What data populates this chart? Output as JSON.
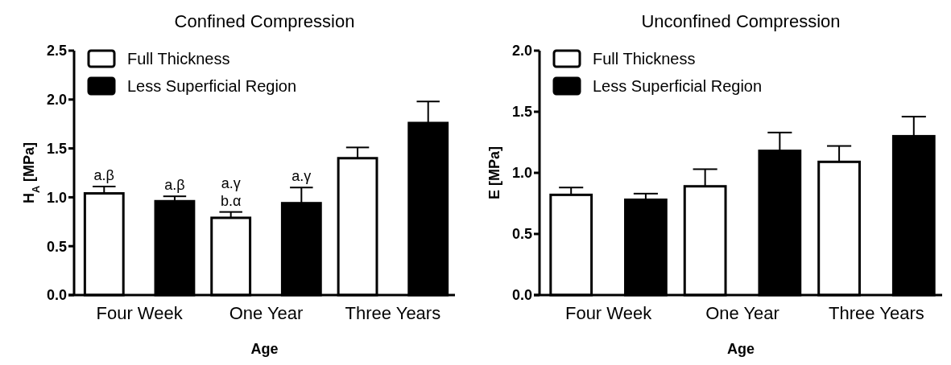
{
  "chart_data": [
    {
      "type": "bar",
      "title": "Confined Compression",
      "xlabel": "Age",
      "ylabel": "H$_{A}$ [MPa]",
      "categories": [
        "Four Week",
        "One Year",
        "Three Years"
      ],
      "series": [
        {
          "name": "Full Thickness",
          "color": "#ffffff",
          "values": [
            1.04,
            0.79,
            1.4
          ],
          "errors": [
            0.07,
            0.06,
            0.11
          ]
        },
        {
          "name": "Less Superficial Region",
          "color": "#000000",
          "values": [
            0.96,
            0.94,
            1.76
          ],
          "errors": [
            0.05,
            0.16,
            0.22
          ]
        }
      ],
      "ylim": [
        0,
        2.5
      ],
      "yticks": [
        {
          "value": 0,
          "label": "0.0"
        },
        0.5,
        {
          "value": 1,
          "label": "1.0"
        },
        1.5,
        {
          "value": 2,
          "label": "2.0"
        },
        2.5
      ],
      "legend": "top left",
      "annotations": [
        "a.β",
        "a.β",
        "a.γ",
        "b.α",
        "a.γ"
      ]
    },
    {
      "type": "bar",
      "title": "Unconfined Compression",
      "xlabel": "Age",
      "ylabel": "E [MPa]",
      "categories": [
        "Four Week",
        "One Year",
        "Three Years"
      ],
      "series": [
        {
          "name": "Full Thickness",
          "color": "#ffffff",
          "values": [
            0.82,
            0.89,
            1.09
          ],
          "errors": [
            0.06,
            0.14,
            0.13
          ]
        },
        {
          "name": "Less Superficial Region",
          "color": "#000000",
          "values": [
            0.78,
            1.18,
            1.3
          ],
          "errors": [
            0.05,
            0.15,
            0.16
          ]
        }
      ],
      "ylim": [
        0,
        2
      ],
      "yticks": [
        {
          "value": 0,
          "label": "0.0"
        },
        0.5,
        {
          "value": 1,
          "label": "1.0"
        },
        1.5,
        {
          "value": 2,
          "label": "2.0"
        }
      ],
      "legend": "top left"
    }
  ]
}
